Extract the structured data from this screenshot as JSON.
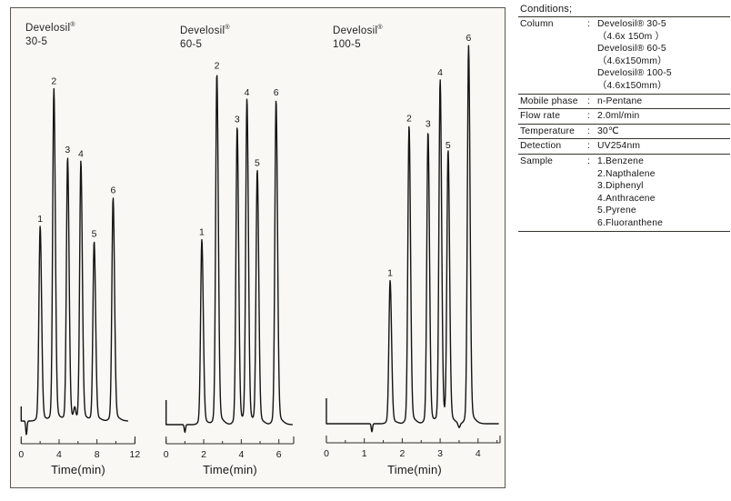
{
  "figure": {
    "frame_border_color": "#57554d",
    "trace_color": "#141414",
    "axis_color": "#2e2c28"
  },
  "chart_data": [
    {
      "type": "line",
      "title": "Develosil",
      "registered_mark": "®",
      "grade": "30-5",
      "xlabel": "Time(min)",
      "x_axis": {
        "min": 0,
        "max": 12,
        "unit": "min",
        "major_ticks": [
          0,
          4,
          8,
          12
        ],
        "minor_ticks": [
          2,
          6,
          10
        ]
      },
      "injection_mark": {
        "time_min": 0.55,
        "rel_height": -0.036
      },
      "peaks": [
        {
          "label": "1",
          "compound": "Benzene",
          "time_min": 2.0,
          "rel_height": 0.51
        },
        {
          "label": "2",
          "compound": "Napthalene",
          "time_min": 3.45,
          "rel_height": 0.87
        },
        {
          "label": "3",
          "compound": "Diphenyl",
          "time_min": 4.9,
          "rel_height": 0.69
        },
        {
          "label": "4",
          "compound": "Anthracene",
          "time_min": 6.3,
          "rel_height": 0.68
        },
        {
          "label": "5",
          "compound": "Pyrene",
          "time_min": 7.7,
          "rel_height": 0.47
        },
        {
          "label": "6",
          "compound": "Fluoranthene",
          "time_min": 9.7,
          "rel_height": 0.585
        }
      ],
      "artifacts": [
        {
          "time_min": 5.65,
          "rel_height": 0.028
        }
      ]
    },
    {
      "type": "line",
      "title": "Develosil",
      "registered_mark": "®",
      "grade": "60-5",
      "xlabel": "Time(min)",
      "x_axis": {
        "min": 0,
        "max": 6.8,
        "unit": "min",
        "major_ticks": [
          0,
          2,
          4,
          6
        ],
        "minor_ticks": [
          1,
          3,
          5
        ]
      },
      "injection_mark": {
        "time_min": 1.0,
        "rel_height": -0.02
      },
      "peaks": [
        {
          "label": "1",
          "compound": "Benzene",
          "time_min": 1.9,
          "rel_height": 0.485
        },
        {
          "label": "2",
          "compound": "Napthalene",
          "time_min": 2.7,
          "rel_height": 0.92
        },
        {
          "label": "3",
          "compound": "Diphenyl",
          "time_min": 3.78,
          "rel_height": 0.78
        },
        {
          "label": "4",
          "compound": "Anthracene",
          "time_min": 4.3,
          "rel_height": 0.85
        },
        {
          "label": "5",
          "compound": "Pyrene",
          "time_min": 4.85,
          "rel_height": 0.665
        },
        {
          "label": "6",
          "compound": "Fluoranthene",
          "time_min": 5.85,
          "rel_height": 0.85
        }
      ],
      "artifacts": []
    },
    {
      "type": "line",
      "title": "Develosil",
      "registered_mark": "®",
      "grade": "100-5",
      "xlabel": "Time(min)",
      "x_axis": {
        "min": 0,
        "max": 4.6,
        "unit": "min",
        "major_ticks": [
          0,
          1,
          2,
          3,
          4
        ],
        "minor_ticks": [
          0.5,
          1.5,
          2.5,
          3.5,
          4.5
        ]
      },
      "injection_mark": {
        "time_min": 1.2,
        "rel_height": -0.021
      },
      "peaks": [
        {
          "label": "1",
          "compound": "Benzene",
          "time_min": 1.68,
          "rel_height": 0.375
        },
        {
          "label": "2",
          "compound": "Napthalene",
          "time_min": 2.18,
          "rel_height": 0.78
        },
        {
          "label": "3",
          "compound": "Diphenyl",
          "time_min": 2.68,
          "rel_height": 0.765
        },
        {
          "label": "4",
          "compound": "Anthracene",
          "time_min": 3.0,
          "rel_height": 0.9
        },
        {
          "label": "5",
          "compound": "Pyrene",
          "time_min": 3.21,
          "rel_height": 0.71
        },
        {
          "label": "6",
          "compound": "Fluoranthene",
          "time_min": 3.75,
          "rel_height": 0.99
        }
      ],
      "artifacts": [
        {
          "time_min": 3.5,
          "rel_height": -0.012
        }
      ]
    }
  ],
  "conditions": {
    "title": "Conditions;",
    "colon": ":",
    "rows": [
      {
        "label": "Column",
        "values": [
          "Develosil® 30-5",
          "（4.6x 150m ）",
          "Develosil® 60-5",
          "（4.6x150mm）",
          "Develosil® 100-5",
          "（4.6x150mm）"
        ]
      },
      {
        "label": "Mobile phase",
        "values": [
          "n-Pentane"
        ]
      },
      {
        "label": "Flow rate",
        "values": [
          "2.0ml/min"
        ]
      },
      {
        "label": "Temperature",
        "values": [
          "30℃"
        ]
      },
      {
        "label": "Detection",
        "values": [
          "UV254nm"
        ]
      },
      {
        "label": "Sample",
        "values": [
          "1.Benzene",
          "2.Napthalene",
          "3.Diphenyl",
          "4.Anthracene",
          "5.Pyrene",
          "6.Fluoranthene"
        ]
      }
    ]
  }
}
